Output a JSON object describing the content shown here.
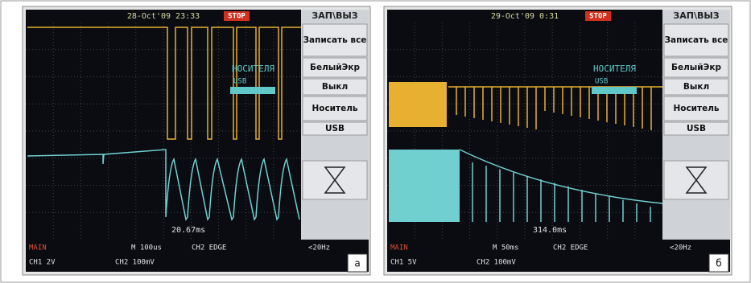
{
  "panels": [
    {
      "header": {
        "date": "28-Oct'09 23:33",
        "status": "STOP"
      },
      "menu": {
        "title": "ЗАП\\ВЫЗ",
        "items": [
          "Записать все",
          "БелыйЭкр",
          "Выкл",
          "Носитель",
          "USB"
        ]
      },
      "overlay": {
        "label": "НОСИТЕЛЯ",
        "sub": "USB"
      },
      "cursor": "20.67ms",
      "footer": {
        "mode": "MAIN",
        "timebase": "M 100us",
        "trigger": "CH2 EDGE",
        "freq": "<20Hz",
        "ch1": "CH1 2V",
        "ch2": "CH2 100mV"
      },
      "tag": "а"
    },
    {
      "header": {
        "date": "29-Oct'09 0:31",
        "status": "STOP"
      },
      "menu": {
        "title": "ЗАП\\ВЫЗ",
        "items": [
          "Записать все",
          "БелыйЭкр",
          "Выкл",
          "Носитель",
          "USB"
        ]
      },
      "overlay": {
        "label": "НОСИТЕЛЯ",
        "sub": "USB"
      },
      "cursor": "314.0ms",
      "footer": {
        "mode": "MAIN",
        "timebase": "M 50ms",
        "trigger": "CH2 EDGE",
        "freq": "<20Hz",
        "ch1": "CH1 5V",
        "ch2": "CH2 100mV"
      },
      "tag": "б"
    }
  ]
}
